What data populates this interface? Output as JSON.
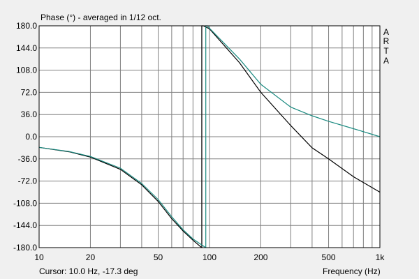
{
  "chart_data": {
    "type": "line",
    "title": "Phase (°) - averaged in 1/12 oct.",
    "xlabel": "Frequency (Hz)",
    "ylabel": "",
    "xscale": "log",
    "xlim": [
      10,
      1000
    ],
    "ylim": [
      -180,
      180
    ],
    "grid": true,
    "yticks": [
      "180.0",
      "144.0",
      "108.0",
      "72.0",
      "36.0",
      "0.0",
      "-36.0",
      "-72.0",
      "-108.0",
      "-144.0",
      "-180.0"
    ],
    "xticks": [
      {
        "value": 10,
        "label": "10"
      },
      {
        "value": 20,
        "label": "20"
      },
      {
        "value": 50,
        "label": "50"
      },
      {
        "value": 100,
        "label": "100"
      },
      {
        "value": 200,
        "label": "200"
      },
      {
        "value": 500,
        "label": "500"
      },
      {
        "value": 1000,
        "label": "1k"
      }
    ],
    "series": [
      {
        "color": "#000000",
        "points": [
          [
            10,
            -17.3
          ],
          [
            15,
            -24.5
          ],
          [
            20,
            -33
          ],
          [
            30,
            -53
          ],
          [
            40,
            -78
          ],
          [
            50,
            -105
          ],
          [
            60,
            -133
          ],
          [
            70,
            -153
          ],
          [
            80,
            -168
          ],
          [
            90,
            -180
          ],
          [
            90.1,
            180
          ],
          [
            92,
            180
          ],
          [
            100,
            175
          ],
          [
            150,
            120
          ],
          [
            200,
            72
          ],
          [
            300,
            18
          ],
          [
            400,
            -18
          ],
          [
            500,
            -36
          ],
          [
            700,
            -65
          ],
          [
            1000,
            -90
          ]
        ]
      },
      {
        "color": "#1a8a80",
        "points": [
          [
            10,
            -17.3
          ],
          [
            15,
            -24
          ],
          [
            20,
            -32
          ],
          [
            30,
            -51
          ],
          [
            40,
            -76
          ],
          [
            50,
            -102
          ],
          [
            60,
            -130
          ],
          [
            70,
            -151
          ],
          [
            80,
            -166
          ],
          [
            95,
            -180
          ],
          [
            95.1,
            180
          ],
          [
            97,
            180
          ],
          [
            100,
            176
          ],
          [
            150,
            126
          ],
          [
            200,
            85
          ],
          [
            300,
            48
          ],
          [
            400,
            34
          ],
          [
            500,
            25
          ],
          [
            700,
            13
          ],
          [
            1000,
            0
          ]
        ]
      }
    ]
  },
  "cursor_text": "Cursor: 10.0 Hz, -17.3 deg",
  "brand_letters": [
    "A",
    "R",
    "T",
    "A"
  ],
  "colors": {
    "background": "#f0f0f0",
    "plot_bg": "#ffffff",
    "grid": "#808080",
    "frame": "#000000"
  }
}
